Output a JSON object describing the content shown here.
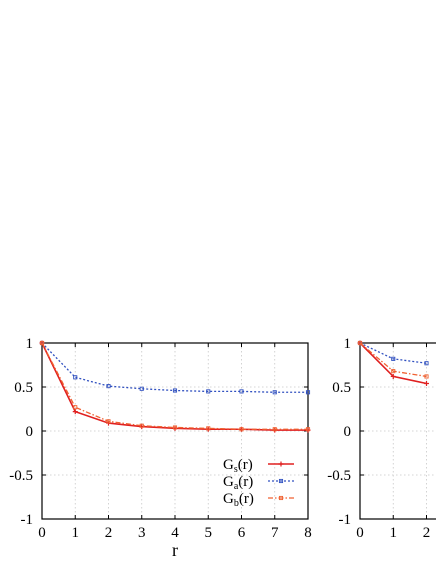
{
  "chart_data": [
    {
      "type": "line",
      "title": "",
      "xlabel": "r",
      "ylabel": "",
      "xlim": [
        0,
        8
      ],
      "ylim": [
        -1,
        1
      ],
      "grid": true,
      "legend_position": "bottom-right",
      "x": [
        0,
        1,
        2,
        3,
        4,
        5,
        6,
        7,
        8
      ],
      "x_ticks": [
        "0",
        "1",
        "2",
        "3",
        "4",
        "5",
        "6",
        "7",
        "8"
      ],
      "y_ticks": [
        "1",
        "0.5",
        "0",
        "-0.5",
        "-1"
      ],
      "series": [
        {
          "name": "Gs(r)",
          "legend_main": "G",
          "legend_sub": "s",
          "legend_tail": "(r)",
          "color": "#e02020",
          "style": "solid",
          "values": [
            1,
            0.22,
            0.09,
            0.05,
            0.03,
            0.02,
            0.02,
            0.01,
            0.01
          ]
        },
        {
          "name": "Ga(r)",
          "legend_main": "G",
          "legend_sub": "a",
          "legend_tail": "(r)",
          "color": "#3050c0",
          "style": "dotted",
          "values": [
            1,
            0.61,
            0.51,
            0.48,
            0.46,
            0.45,
            0.45,
            0.44,
            0.44
          ]
        },
        {
          "name": "Gb(r)",
          "legend_main": "G",
          "legend_sub": "b",
          "legend_tail": "(r)",
          "color": "#f06030",
          "style": "dashdot",
          "values": [
            1,
            0.27,
            0.11,
            0.06,
            0.04,
            0.03,
            0.02,
            0.02,
            0.02
          ]
        }
      ]
    },
    {
      "type": "line",
      "title": "",
      "xlabel": "",
      "ylabel": "",
      "xlim": [
        0,
        8
      ],
      "ylim": [
        -1,
        1
      ],
      "grid": true,
      "x": [
        0,
        1,
        2
      ],
      "x_ticks": [
        "0",
        "1",
        "2"
      ],
      "y_ticks": [
        "1",
        "0.5",
        "0",
        "-0.5",
        "-1"
      ],
      "series": [
        {
          "color": "#e02020",
          "style": "solid",
          "values": [
            1,
            0.62,
            0.54
          ]
        },
        {
          "color": "#3050c0",
          "style": "dotted",
          "values": [
            1,
            0.82,
            0.77
          ]
        },
        {
          "color": "#f06030",
          "style": "dashdot",
          "values": [
            1,
            0.68,
            0.62
          ]
        }
      ]
    }
  ]
}
